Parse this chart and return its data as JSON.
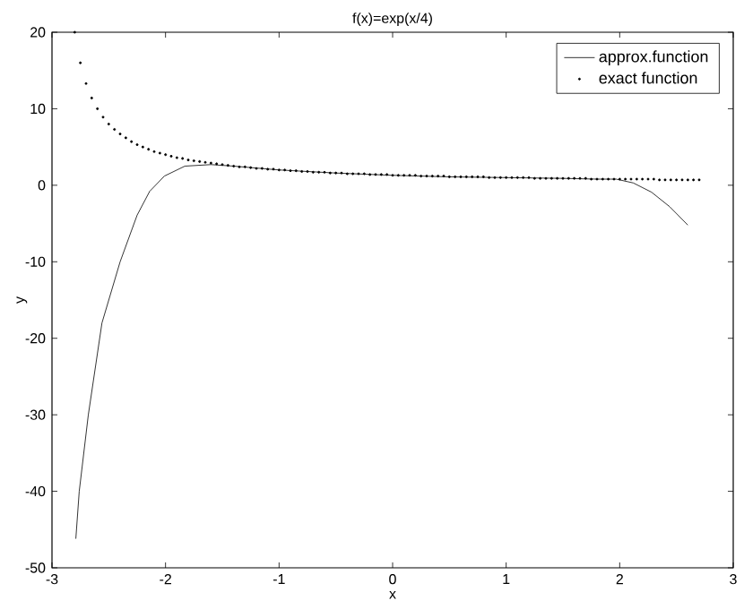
{
  "chart_data": {
    "type": "line",
    "title": "f(x)=exp(x/4)",
    "xlabel": "x",
    "ylabel": "y",
    "xlim": [
      -3,
      3
    ],
    "ylim": [
      -50,
      20
    ],
    "xticks": [
      -3,
      -2,
      -1,
      0,
      1,
      2,
      3
    ],
    "yticks": [
      -50,
      -40,
      -30,
      -20,
      -10,
      0,
      10,
      20
    ],
    "grid": false,
    "legend": "top right",
    "series": [
      {
        "name": "approx.function",
        "color": "#000000",
        "marker": "none",
        "line_style": "solid",
        "x": [
          -2.79,
          -2.76,
          -2.68,
          -2.56,
          -2.4,
          -2.25,
          -2.14,
          -2.01,
          -1.83,
          -1.6,
          -1.4,
          -1.0,
          -0.5,
          0,
          0.5,
          1,
          1.5,
          1.8,
          1.97,
          2.12,
          2.28,
          2.44,
          2.6
        ],
        "values": [
          -46.2,
          -40,
          -30,
          -18,
          -10,
          -3.9,
          -0.8,
          1.2,
          2.5,
          2.7,
          2.5,
          2.0,
          1.6,
          1.3,
          1.1,
          1.0,
          0.9,
          0.8,
          0.8,
          0.3,
          -0.9,
          -2.8,
          -5.2
        ]
      },
      {
        "name": "exact function",
        "type": "scatter",
        "color": "#000000",
        "marker": "circle",
        "x": [
          -2.8,
          -2.75,
          -2.7,
          -2.65,
          -2.6,
          -2.55,
          -2.5,
          -2.45,
          -2.4,
          -2.35,
          -2.3,
          -2.25,
          -2.2,
          -2.15,
          -2.1,
          -2.05,
          -2.0,
          -1.95,
          -1.9,
          -1.85,
          -1.8,
          -1.75,
          -1.7,
          -1.65,
          -1.6,
          -1.55,
          -1.5,
          -1.45,
          -1.4,
          -1.35,
          -1.3,
          -1.25,
          -1.2,
          -1.15,
          -1.1,
          -1.05,
          -1.0,
          -0.95,
          -0.9,
          -0.85,
          -0.8,
          -0.75,
          -0.7,
          -0.65,
          -0.6,
          -0.55,
          -0.5,
          -0.45,
          -0.4,
          -0.35,
          -0.3,
          -0.25,
          -0.2,
          -0.15,
          -0.1,
          -0.05,
          0,
          0.05,
          0.1,
          0.15,
          0.2,
          0.25,
          0.3,
          0.35,
          0.4,
          0.45,
          0.5,
          0.55,
          0.6,
          0.65,
          0.7,
          0.75,
          0.8,
          0.85,
          0.9,
          0.95,
          1.0,
          1.05,
          1.1,
          1.15,
          1.2,
          1.25,
          1.3,
          1.35,
          1.4,
          1.45,
          1.5,
          1.55,
          1.6,
          1.65,
          1.7,
          1.75,
          1.8,
          1.85,
          1.9,
          1.95,
          2.0,
          2.05,
          2.1,
          2.15,
          2.2,
          2.25,
          2.3,
          2.35,
          2.4,
          2.45,
          2.5,
          2.55,
          2.6,
          2.65,
          2.7
        ],
        "values": [
          20.0,
          16.0,
          13.3,
          11.4,
          10.0,
          8.9,
          8.0,
          7.3,
          6.7,
          6.2,
          5.7,
          5.3,
          5.0,
          4.7,
          4.4,
          4.2,
          4.0,
          3.8,
          3.6,
          3.5,
          3.3,
          3.2,
          3.1,
          3.0,
          2.9,
          2.8,
          2.7,
          2.6,
          2.5,
          2.4,
          2.4,
          2.3,
          2.2,
          2.2,
          2.1,
          2.1,
          2.0,
          2.0,
          1.9,
          1.9,
          1.8,
          1.8,
          1.7,
          1.7,
          1.7,
          1.6,
          1.6,
          1.6,
          1.5,
          1.5,
          1.5,
          1.5,
          1.4,
          1.4,
          1.4,
          1.4,
          1.3,
          1.3,
          1.3,
          1.3,
          1.3,
          1.2,
          1.2,
          1.2,
          1.2,
          1.2,
          1.1,
          1.1,
          1.1,
          1.1,
          1.1,
          1.1,
          1.1,
          1.0,
          1.0,
          1.0,
          1.0,
          1.0,
          1.0,
          1.0,
          1.0,
          0.9,
          0.9,
          0.9,
          0.9,
          0.9,
          0.9,
          0.9,
          0.9,
          0.9,
          0.9,
          0.8,
          0.8,
          0.8,
          0.8,
          0.8,
          0.8,
          0.8,
          0.8,
          0.8,
          0.8,
          0.8,
          0.8,
          0.7,
          0.7,
          0.7,
          0.7,
          0.7,
          0.7,
          0.7,
          0.7
        ]
      }
    ]
  }
}
